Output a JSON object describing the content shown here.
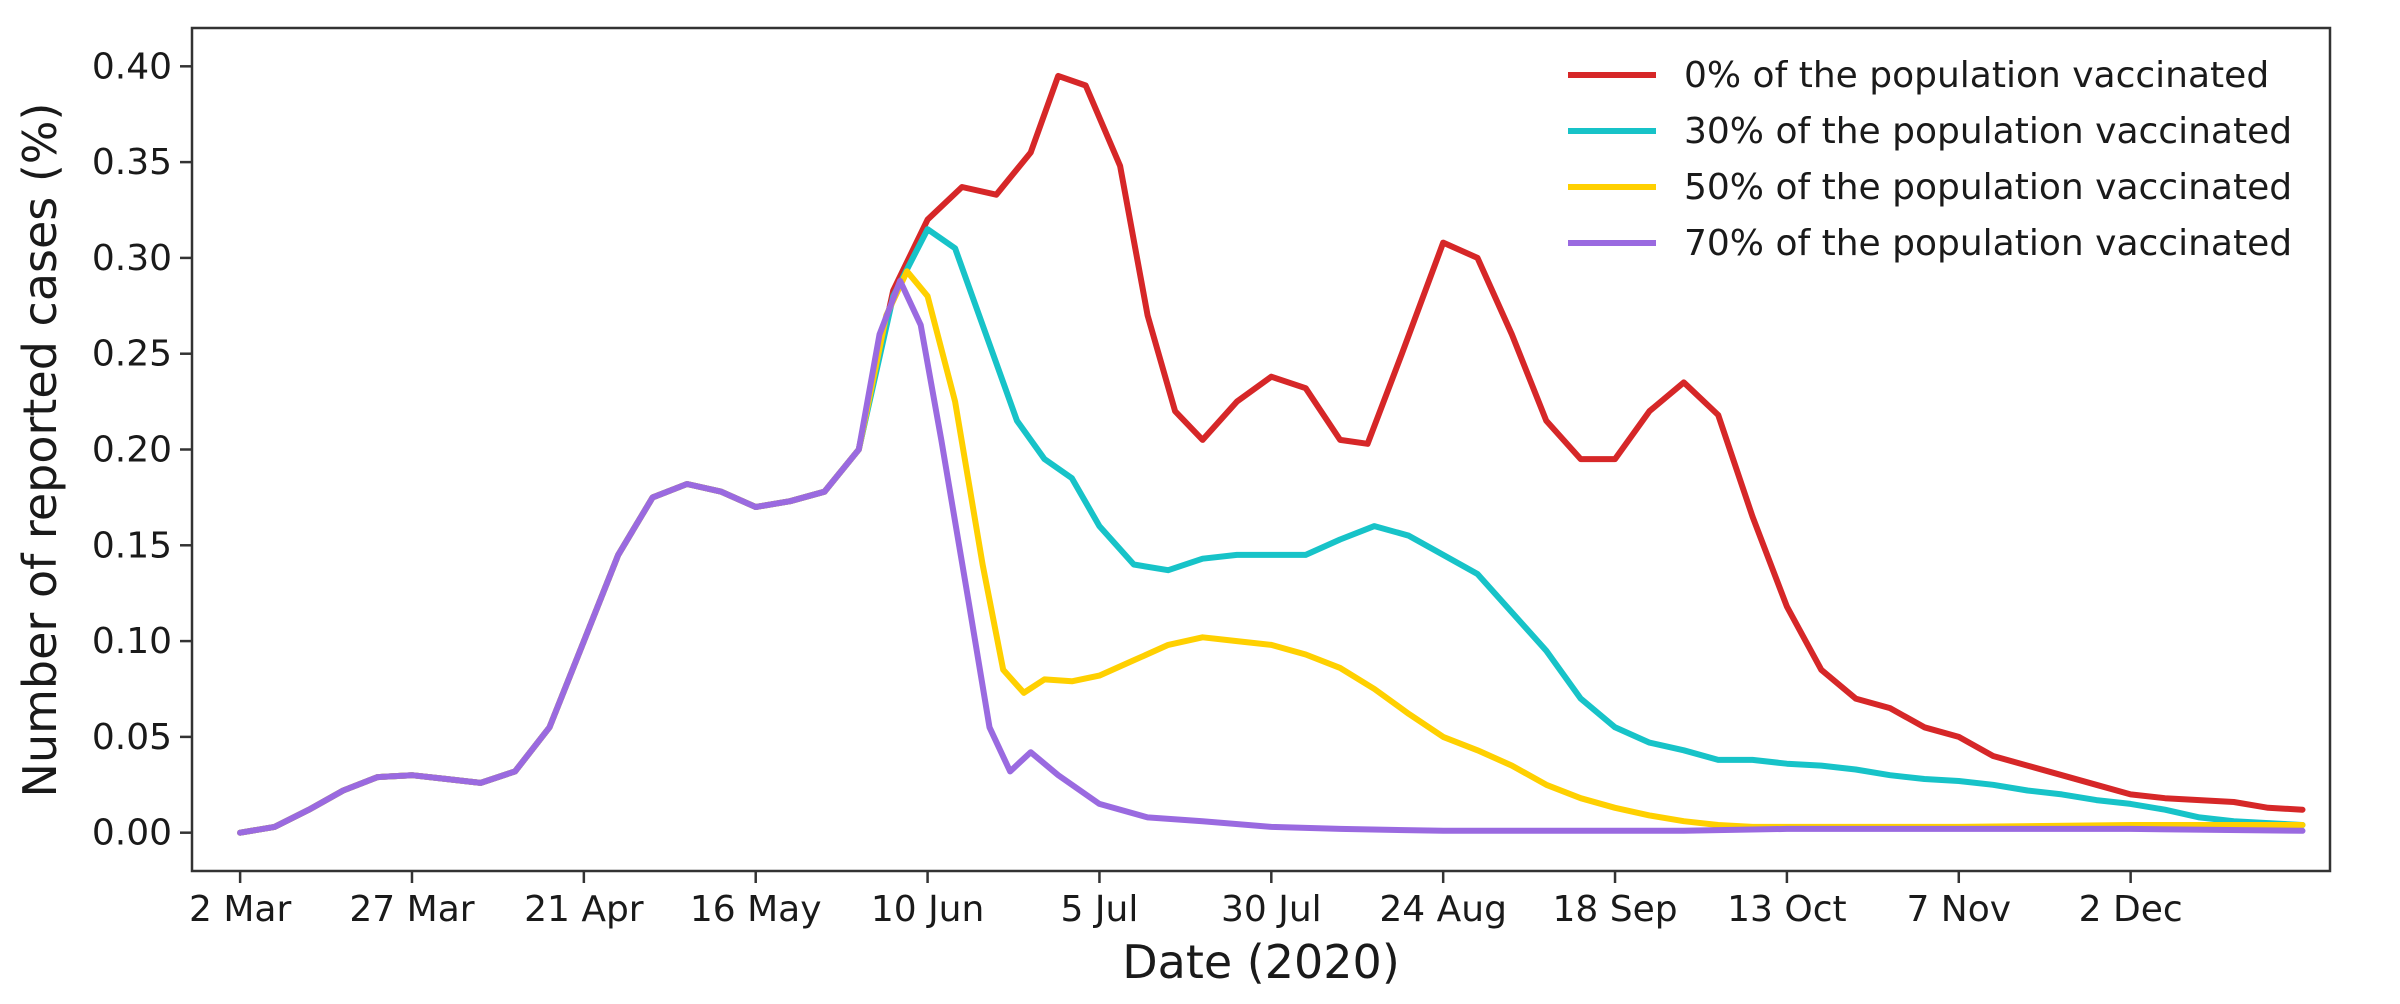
{
  "chart_data": {
    "type": "line",
    "xlabel": "Date (2020)",
    "ylabel": "Number of reported cases (%)",
    "xlim": [
      "2020-02-24",
      "2020-12-31"
    ],
    "ylim": [
      -0.02,
      0.42
    ],
    "grid": false,
    "legend_position": "top-right",
    "x_ticks": [
      {
        "date": "2020-03-02",
        "label": "2 Mar"
      },
      {
        "date": "2020-03-27",
        "label": "27 Mar"
      },
      {
        "date": "2020-04-21",
        "label": "21 Apr"
      },
      {
        "date": "2020-05-16",
        "label": "16 May"
      },
      {
        "date": "2020-06-10",
        "label": "10 Jun"
      },
      {
        "date": "2020-07-05",
        "label": "5 Jul"
      },
      {
        "date": "2020-07-30",
        "label": "30 Jul"
      },
      {
        "date": "2020-08-24",
        "label": "24 Aug"
      },
      {
        "date": "2020-09-18",
        "label": "18 Sep"
      },
      {
        "date": "2020-10-13",
        "label": "13 Oct"
      },
      {
        "date": "2020-11-07",
        "label": "7 Nov"
      },
      {
        "date": "2020-12-02",
        "label": "2 Dec"
      }
    ],
    "y_ticks": [
      {
        "value": 0.0,
        "label": "0.00"
      },
      {
        "value": 0.05,
        "label": "0.05"
      },
      {
        "value": 0.1,
        "label": "0.10"
      },
      {
        "value": 0.15,
        "label": "0.15"
      },
      {
        "value": 0.2,
        "label": "0.20"
      },
      {
        "value": 0.25,
        "label": "0.25"
      },
      {
        "value": 0.3,
        "label": "0.30"
      },
      {
        "value": 0.35,
        "label": "0.35"
      },
      {
        "value": 0.4,
        "label": "0.40"
      }
    ],
    "series": [
      {
        "name": "0% of the population vaccinated",
        "color": "#d62728",
        "points": [
          [
            "2020-03-02",
            0.0
          ],
          [
            "2020-03-07",
            0.003
          ],
          [
            "2020-03-12",
            0.012
          ],
          [
            "2020-03-17",
            0.022
          ],
          [
            "2020-03-22",
            0.029
          ],
          [
            "2020-03-27",
            0.03
          ],
          [
            "2020-04-01",
            0.028
          ],
          [
            "2020-04-06",
            0.026
          ],
          [
            "2020-04-11",
            0.032
          ],
          [
            "2020-04-16",
            0.055
          ],
          [
            "2020-04-21",
            0.1
          ],
          [
            "2020-04-26",
            0.145
          ],
          [
            "2020-05-01",
            0.175
          ],
          [
            "2020-05-06",
            0.182
          ],
          [
            "2020-05-11",
            0.178
          ],
          [
            "2020-05-16",
            0.17
          ],
          [
            "2020-05-21",
            0.173
          ],
          [
            "2020-05-26",
            0.178
          ],
          [
            "2020-05-31",
            0.2
          ],
          [
            "2020-06-05",
            0.283
          ],
          [
            "2020-06-10",
            0.32
          ],
          [
            "2020-06-15",
            0.337
          ],
          [
            "2020-06-20",
            0.333
          ],
          [
            "2020-06-25",
            0.355
          ],
          [
            "2020-06-29",
            0.395
          ],
          [
            "2020-07-03",
            0.39
          ],
          [
            "2020-07-08",
            0.348
          ],
          [
            "2020-07-12",
            0.27
          ],
          [
            "2020-07-16",
            0.22
          ],
          [
            "2020-07-20",
            0.205
          ],
          [
            "2020-07-25",
            0.225
          ],
          [
            "2020-07-30",
            0.238
          ],
          [
            "2020-08-04",
            0.232
          ],
          [
            "2020-08-09",
            0.205
          ],
          [
            "2020-08-13",
            0.203
          ],
          [
            "2020-08-18",
            0.25
          ],
          [
            "2020-08-24",
            0.308
          ],
          [
            "2020-08-29",
            0.3
          ],
          [
            "2020-09-03",
            0.26
          ],
          [
            "2020-09-08",
            0.215
          ],
          [
            "2020-09-13",
            0.195
          ],
          [
            "2020-09-18",
            0.195
          ],
          [
            "2020-09-23",
            0.22
          ],
          [
            "2020-09-28",
            0.235
          ],
          [
            "2020-10-03",
            0.218
          ],
          [
            "2020-10-08",
            0.165
          ],
          [
            "2020-10-13",
            0.118
          ],
          [
            "2020-10-18",
            0.085
          ],
          [
            "2020-10-23",
            0.07
          ],
          [
            "2020-10-28",
            0.065
          ],
          [
            "2020-11-02",
            0.055
          ],
          [
            "2020-11-07",
            0.05
          ],
          [
            "2020-11-12",
            0.04
          ],
          [
            "2020-11-17",
            0.035
          ],
          [
            "2020-11-22",
            0.03
          ],
          [
            "2020-11-27",
            0.025
          ],
          [
            "2020-12-02",
            0.02
          ],
          [
            "2020-12-07",
            0.018
          ],
          [
            "2020-12-12",
            0.017
          ],
          [
            "2020-12-17",
            0.016
          ],
          [
            "2020-12-22",
            0.013
          ],
          [
            "2020-12-27",
            0.012
          ]
        ]
      },
      {
        "name": "30% of the population vaccinated",
        "color": "#17c3c8",
        "points": [
          [
            "2020-03-02",
            0.0
          ],
          [
            "2020-03-07",
            0.003
          ],
          [
            "2020-03-12",
            0.012
          ],
          [
            "2020-03-17",
            0.022
          ],
          [
            "2020-03-22",
            0.029
          ],
          [
            "2020-03-27",
            0.03
          ],
          [
            "2020-04-01",
            0.028
          ],
          [
            "2020-04-06",
            0.026
          ],
          [
            "2020-04-11",
            0.032
          ],
          [
            "2020-04-16",
            0.055
          ],
          [
            "2020-04-21",
            0.1
          ],
          [
            "2020-04-26",
            0.145
          ],
          [
            "2020-05-01",
            0.175
          ],
          [
            "2020-05-06",
            0.182
          ],
          [
            "2020-05-11",
            0.178
          ],
          [
            "2020-05-16",
            0.17
          ],
          [
            "2020-05-21",
            0.173
          ],
          [
            "2020-05-26",
            0.178
          ],
          [
            "2020-05-31",
            0.2
          ],
          [
            "2020-06-05",
            0.28
          ],
          [
            "2020-06-10",
            0.315
          ],
          [
            "2020-06-14",
            0.305
          ],
          [
            "2020-06-18",
            0.265
          ],
          [
            "2020-06-23",
            0.215
          ],
          [
            "2020-06-27",
            0.195
          ],
          [
            "2020-07-01",
            0.185
          ],
          [
            "2020-07-05",
            0.16
          ],
          [
            "2020-07-10",
            0.14
          ],
          [
            "2020-07-15",
            0.137
          ],
          [
            "2020-07-20",
            0.143
          ],
          [
            "2020-07-25",
            0.145
          ],
          [
            "2020-07-30",
            0.145
          ],
          [
            "2020-08-04",
            0.145
          ],
          [
            "2020-08-09",
            0.153
          ],
          [
            "2020-08-14",
            0.16
          ],
          [
            "2020-08-19",
            0.155
          ],
          [
            "2020-08-24",
            0.145
          ],
          [
            "2020-08-29",
            0.135
          ],
          [
            "2020-09-03",
            0.115
          ],
          [
            "2020-09-08",
            0.095
          ],
          [
            "2020-09-13",
            0.07
          ],
          [
            "2020-09-18",
            0.055
          ],
          [
            "2020-09-23",
            0.047
          ],
          [
            "2020-09-28",
            0.043
          ],
          [
            "2020-10-03",
            0.038
          ],
          [
            "2020-10-08",
            0.038
          ],
          [
            "2020-10-13",
            0.036
          ],
          [
            "2020-10-18",
            0.035
          ],
          [
            "2020-10-23",
            0.033
          ],
          [
            "2020-10-28",
            0.03
          ],
          [
            "2020-11-02",
            0.028
          ],
          [
            "2020-11-07",
            0.027
          ],
          [
            "2020-11-12",
            0.025
          ],
          [
            "2020-11-17",
            0.022
          ],
          [
            "2020-11-22",
            0.02
          ],
          [
            "2020-11-27",
            0.017
          ],
          [
            "2020-12-02",
            0.015
          ],
          [
            "2020-12-07",
            0.012
          ],
          [
            "2020-12-12",
            0.008
          ],
          [
            "2020-12-17",
            0.006
          ],
          [
            "2020-12-22",
            0.005
          ],
          [
            "2020-12-27",
            0.004
          ]
        ]
      },
      {
        "name": "50% of the population vaccinated",
        "color": "#ffd000",
        "points": [
          [
            "2020-03-02",
            0.0
          ],
          [
            "2020-03-07",
            0.003
          ],
          [
            "2020-03-12",
            0.012
          ],
          [
            "2020-03-17",
            0.022
          ],
          [
            "2020-03-22",
            0.029
          ],
          [
            "2020-03-27",
            0.03
          ],
          [
            "2020-04-01",
            0.028
          ],
          [
            "2020-04-06",
            0.026
          ],
          [
            "2020-04-11",
            0.032
          ],
          [
            "2020-04-16",
            0.055
          ],
          [
            "2020-04-21",
            0.1
          ],
          [
            "2020-04-26",
            0.145
          ],
          [
            "2020-05-01",
            0.175
          ],
          [
            "2020-05-06",
            0.182
          ],
          [
            "2020-05-11",
            0.178
          ],
          [
            "2020-05-16",
            0.17
          ],
          [
            "2020-05-21",
            0.173
          ],
          [
            "2020-05-26",
            0.178
          ],
          [
            "2020-05-31",
            0.2
          ],
          [
            "2020-06-04",
            0.27
          ],
          [
            "2020-06-07",
            0.293
          ],
          [
            "2020-06-10",
            0.28
          ],
          [
            "2020-06-14",
            0.225
          ],
          [
            "2020-06-18",
            0.14
          ],
          [
            "2020-06-21",
            0.085
          ],
          [
            "2020-06-24",
            0.073
          ],
          [
            "2020-06-27",
            0.08
          ],
          [
            "2020-07-01",
            0.079
          ],
          [
            "2020-07-05",
            0.082
          ],
          [
            "2020-07-10",
            0.09
          ],
          [
            "2020-07-15",
            0.098
          ],
          [
            "2020-07-20",
            0.102
          ],
          [
            "2020-07-25",
            0.1
          ],
          [
            "2020-07-30",
            0.098
          ],
          [
            "2020-08-04",
            0.093
          ],
          [
            "2020-08-09",
            0.086
          ],
          [
            "2020-08-14",
            0.075
          ],
          [
            "2020-08-19",
            0.062
          ],
          [
            "2020-08-24",
            0.05
          ],
          [
            "2020-08-29",
            0.043
          ],
          [
            "2020-09-03",
            0.035
          ],
          [
            "2020-09-08",
            0.025
          ],
          [
            "2020-09-13",
            0.018
          ],
          [
            "2020-09-18",
            0.013
          ],
          [
            "2020-09-23",
            0.009
          ],
          [
            "2020-09-28",
            0.006
          ],
          [
            "2020-10-03",
            0.004
          ],
          [
            "2020-10-08",
            0.003
          ],
          [
            "2020-10-18",
            0.003
          ],
          [
            "2020-11-07",
            0.003
          ],
          [
            "2020-12-02",
            0.004
          ],
          [
            "2020-12-27",
            0.004
          ]
        ]
      },
      {
        "name": "70% of the population vaccinated",
        "color": "#9a6ae0",
        "points": [
          [
            "2020-03-02",
            0.0
          ],
          [
            "2020-03-07",
            0.003
          ],
          [
            "2020-03-12",
            0.012
          ],
          [
            "2020-03-17",
            0.022
          ],
          [
            "2020-03-22",
            0.029
          ],
          [
            "2020-03-27",
            0.03
          ],
          [
            "2020-04-01",
            0.028
          ],
          [
            "2020-04-06",
            0.026
          ],
          [
            "2020-04-11",
            0.032
          ],
          [
            "2020-04-16",
            0.055
          ],
          [
            "2020-04-21",
            0.1
          ],
          [
            "2020-04-26",
            0.145
          ],
          [
            "2020-05-01",
            0.175
          ],
          [
            "2020-05-06",
            0.182
          ],
          [
            "2020-05-11",
            0.178
          ],
          [
            "2020-05-16",
            0.17
          ],
          [
            "2020-05-21",
            0.173
          ],
          [
            "2020-05-26",
            0.178
          ],
          [
            "2020-05-31",
            0.2
          ],
          [
            "2020-06-03",
            0.26
          ],
          [
            "2020-06-06",
            0.288
          ],
          [
            "2020-06-09",
            0.265
          ],
          [
            "2020-06-12",
            0.205
          ],
          [
            "2020-06-16",
            0.12
          ],
          [
            "2020-06-19",
            0.055
          ],
          [
            "2020-06-22",
            0.032
          ],
          [
            "2020-06-25",
            0.042
          ],
          [
            "2020-06-29",
            0.03
          ],
          [
            "2020-07-05",
            0.015
          ],
          [
            "2020-07-12",
            0.008
          ],
          [
            "2020-07-20",
            0.006
          ],
          [
            "2020-07-30",
            0.003
          ],
          [
            "2020-08-09",
            0.002
          ],
          [
            "2020-08-24",
            0.001
          ],
          [
            "2020-09-08",
            0.001
          ],
          [
            "2020-09-28",
            0.001
          ],
          [
            "2020-10-13",
            0.002
          ],
          [
            "2020-11-07",
            0.002
          ],
          [
            "2020-12-02",
            0.002
          ],
          [
            "2020-12-27",
            0.001
          ]
        ]
      }
    ]
  }
}
